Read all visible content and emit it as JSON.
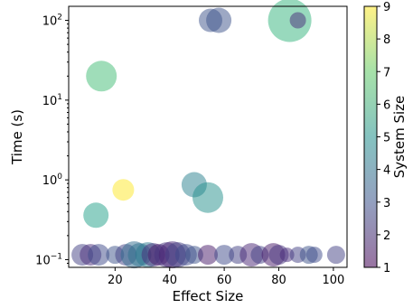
{
  "chart_data": {
    "type": "scatter",
    "xlabel": "Effect Size",
    "ylabel": "Time (s)",
    "colorbar_label": "System Size",
    "xlim": [
      3,
      105
    ],
    "y_scale": "log",
    "ylim": [
      0.08,
      150
    ],
    "x_ticks": [
      20,
      40,
      60,
      80,
      100
    ],
    "y_ticks": [
      {
        "value": 0.1,
        "base": "10",
        "exp": "−1"
      },
      {
        "value": 1,
        "base": "10",
        "exp": "0"
      },
      {
        "value": 10,
        "base": "10",
        "exp": "1"
      },
      {
        "value": 100,
        "base": "10",
        "exp": "2"
      }
    ],
    "color_range": [
      1,
      9
    ],
    "color_ticks": [
      1,
      2,
      3,
      4,
      5,
      6,
      7,
      8,
      9
    ],
    "colormap": "viridis",
    "alpha": 0.5,
    "points": [
      {
        "x": 15,
        "y": 20,
        "c": 6.5,
        "s": 17
      },
      {
        "x": 13,
        "y": 0.36,
        "c": 5.5,
        "s": 14
      },
      {
        "x": 23,
        "y": 0.75,
        "c": 9,
        "s": 12
      },
      {
        "x": 49,
        "y": 0.87,
        "c": 4.5,
        "s": 14
      },
      {
        "x": 54,
        "y": 0.6,
        "c": 5,
        "s": 17
      },
      {
        "x": 55,
        "y": 100,
        "c": 3,
        "s": 13
      },
      {
        "x": 58,
        "y": 100,
        "c": 3,
        "s": 14
      },
      {
        "x": 84,
        "y": 100,
        "c": 6.2,
        "s": 24
      },
      {
        "x": 87,
        "y": 100,
        "c": 2,
        "s": 9
      },
      {
        "x": 8,
        "y": 0.115,
        "c": 2.5,
        "s": 12
      },
      {
        "x": 11,
        "y": 0.115,
        "c": 2,
        "s": 12
      },
      {
        "x": 14,
        "y": 0.115,
        "c": 2.8,
        "s": 12
      },
      {
        "x": 20,
        "y": 0.115,
        "c": 3,
        "s": 10
      },
      {
        "x": 24,
        "y": 0.115,
        "c": 2.5,
        "s": 12
      },
      {
        "x": 27,
        "y": 0.115,
        "c": 3.8,
        "s": 15
      },
      {
        "x": 29,
        "y": 0.115,
        "c": 4,
        "s": 13
      },
      {
        "x": 32,
        "y": 0.115,
        "c": 4.2,
        "s": 14
      },
      {
        "x": 34,
        "y": 0.115,
        "c": 2,
        "s": 13
      },
      {
        "x": 36,
        "y": 0.115,
        "c": 1.5,
        "s": 12
      },
      {
        "x": 39,
        "y": 0.115,
        "c": 2.2,
        "s": 14
      },
      {
        "x": 41,
        "y": 0.115,
        "c": 1.8,
        "s": 15
      },
      {
        "x": 43,
        "y": 0.115,
        "c": 2.5,
        "s": 14
      },
      {
        "x": 46,
        "y": 0.115,
        "c": 2.8,
        "s": 12
      },
      {
        "x": 49,
        "y": 0.115,
        "c": 3,
        "s": 10
      },
      {
        "x": 54,
        "y": 0.115,
        "c": 1.5,
        "s": 11
      },
      {
        "x": 60,
        "y": 0.115,
        "c": 2.8,
        "s": 11
      },
      {
        "x": 65,
        "y": 0.115,
        "c": 2.5,
        "s": 10
      },
      {
        "x": 70,
        "y": 0.115,
        "c": 1.8,
        "s": 13
      },
      {
        "x": 73,
        "y": 0.115,
        "c": 2.5,
        "s": 10
      },
      {
        "x": 78,
        "y": 0.115,
        "c": 1.5,
        "s": 13
      },
      {
        "x": 80,
        "y": 0.115,
        "c": 2.2,
        "s": 11
      },
      {
        "x": 83,
        "y": 0.115,
        "c": 2,
        "s": 8
      },
      {
        "x": 87,
        "y": 0.115,
        "c": 2.5,
        "s": 9
      },
      {
        "x": 91,
        "y": 0.115,
        "c": 3,
        "s": 10
      },
      {
        "x": 93,
        "y": 0.115,
        "c": 2.8,
        "s": 9
      },
      {
        "x": 101,
        "y": 0.115,
        "c": 2.5,
        "s": 10
      }
    ]
  }
}
